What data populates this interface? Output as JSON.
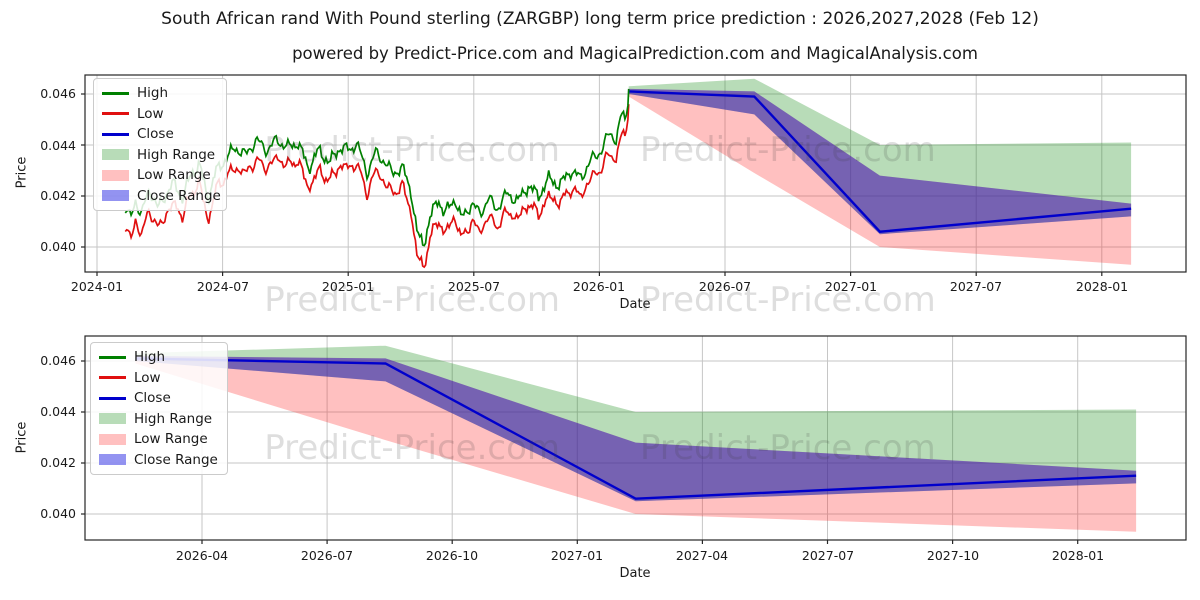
{
  "page": {
    "title": "South African rand With Pound sterling (ZARGBP) long term price prediction : 2026,2027,2028 (Feb 12)",
    "subtitle": "powered by Predict-Price.com and MagicalPrediction.com and MagicalAnalysis.com",
    "watermark_text": "Predict-Price.com"
  },
  "colors": {
    "high_line": "#008000",
    "low_line": "#e01010",
    "close_line": "#0000cc",
    "high_range_fill": "rgba(0,128,0,0.28)",
    "low_range_fill": "rgba(255,30,30,0.28)",
    "close_range_fill": "rgba(15,15,225,0.45)",
    "grid": "#c6c6c6"
  },
  "chart_data": [
    {
      "type": "line",
      "title": "",
      "xlabel": "Date",
      "ylabel": "Price",
      "x_unit": "months since 2024-01",
      "xrange_dates": [
        "2024-01",
        "2028-02"
      ],
      "ylim": [
        0.0388,
        0.0468
      ],
      "grid": true,
      "legend_position": "upper left",
      "legend": [
        "High",
        "Low",
        "Close",
        "High Range",
        "Low Range",
        "Close Range"
      ],
      "xticks": [
        {
          "m": 0,
          "label": "2024-01"
        },
        {
          "m": 6,
          "label": "2024-07"
        },
        {
          "m": 12,
          "label": "2025-01"
        },
        {
          "m": 18,
          "label": "2025-07"
        },
        {
          "m": 24,
          "label": "2026-01"
        },
        {
          "m": 30,
          "label": "2026-07"
        },
        {
          "m": 36,
          "label": "2027-01"
        },
        {
          "m": 42,
          "label": "2027-07"
        },
        {
          "m": 48,
          "label": "2028-01"
        }
      ],
      "yticks": [
        {
          "v": 0.046,
          "label": "0.046"
        },
        {
          "v": 0.044,
          "label": "0.044"
        },
        {
          "v": 0.042,
          "label": "0.042"
        },
        {
          "v": 0.04,
          "label": "0.040"
        }
      ],
      "history": {
        "series": [
          "High",
          "Low"
        ],
        "anchors_month_high_low": [
          [
            1.35,
            0.0415,
            0.0407
          ],
          [
            1.6,
            0.0411,
            0.0403
          ],
          [
            1.85,
            0.0419,
            0.0411
          ],
          [
            2.1,
            0.0412,
            0.0404
          ],
          [
            2.5,
            0.0423,
            0.0415
          ],
          [
            2.9,
            0.0415,
            0.0407
          ],
          [
            3.3,
            0.0421,
            0.0413
          ],
          [
            3.7,
            0.0425,
            0.0417
          ],
          [
            4.1,
            0.0419,
            0.0412
          ],
          [
            4.5,
            0.0429,
            0.0421
          ],
          [
            4.9,
            0.0432,
            0.0425
          ],
          [
            5.3,
            0.0419,
            0.041
          ],
          [
            5.7,
            0.043,
            0.0423
          ],
          [
            6.1,
            0.0434,
            0.0427
          ],
          [
            6.6,
            0.0439,
            0.0431
          ],
          [
            7.1,
            0.0436,
            0.0429
          ],
          [
            7.6,
            0.0442,
            0.0434
          ],
          [
            8.1,
            0.0438,
            0.0431
          ],
          [
            8.6,
            0.0442,
            0.0435
          ],
          [
            9.1,
            0.0439,
            0.0432
          ],
          [
            9.6,
            0.0441,
            0.0434
          ],
          [
            10.1,
            0.0431,
            0.0423
          ],
          [
            10.6,
            0.0438,
            0.043
          ],
          [
            11.1,
            0.0433,
            0.0426
          ],
          [
            11.6,
            0.0439,
            0.0432
          ],
          [
            12.1,
            0.0438,
            0.0431
          ],
          [
            12.4,
            0.0441,
            0.0433
          ],
          [
            12.9,
            0.0429,
            0.0421
          ],
          [
            13.3,
            0.0437,
            0.043
          ],
          [
            13.7,
            0.0434,
            0.0426
          ],
          [
            14.1,
            0.0429,
            0.0421
          ],
          [
            14.6,
            0.0431,
            0.0424
          ],
          [
            15.0,
            0.0422,
            0.0414
          ],
          [
            15.3,
            0.0405,
            0.0396
          ],
          [
            15.6,
            0.0401,
            0.0392
          ],
          [
            15.9,
            0.0411,
            0.0403
          ],
          [
            16.3,
            0.0419,
            0.0411
          ],
          [
            16.6,
            0.0413,
            0.0405
          ],
          [
            17.1,
            0.0419,
            0.0412
          ],
          [
            17.4,
            0.0411,
            0.0403
          ],
          [
            17.9,
            0.0417,
            0.041
          ],
          [
            18.3,
            0.0413,
            0.0406
          ],
          [
            18.7,
            0.0419,
            0.0412
          ],
          [
            19.1,
            0.0415,
            0.0408
          ],
          [
            19.6,
            0.0421,
            0.0414
          ],
          [
            20.1,
            0.0418,
            0.0411
          ],
          [
            20.6,
            0.0424,
            0.0417
          ],
          [
            21.1,
            0.042,
            0.0413
          ],
          [
            21.6,
            0.0427,
            0.042
          ],
          [
            22.1,
            0.0424,
            0.0417
          ],
          [
            22.6,
            0.043,
            0.0423
          ],
          [
            23.1,
            0.0427,
            0.042
          ],
          [
            23.6,
            0.0434,
            0.0427
          ],
          [
            24.1,
            0.0438,
            0.0431
          ],
          [
            24.5,
            0.0445,
            0.0437
          ],
          [
            24.8,
            0.0442,
            0.0434
          ],
          [
            25.1,
            0.0453,
            0.0446
          ],
          [
            25.25,
            0.0449,
            0.0442
          ],
          [
            25.4,
            0.0462,
            0.0456
          ]
        ]
      },
      "prediction": {
        "dates": [
          "2026-02",
          "2026-08",
          "2027-02",
          "2028-02"
        ],
        "x": [
          25.4,
          31.4,
          37.4,
          49.4
        ],
        "close": [
          0.0461,
          0.0459,
          0.0406,
          0.0415
        ],
        "close_upper": [
          0.0462,
          0.0461,
          0.0428,
          0.0417
        ],
        "close_lower": [
          0.046,
          0.0452,
          0.0405,
          0.0412
        ],
        "high_upper": [
          0.0463,
          0.0466,
          0.044,
          0.0441
        ],
        "low_lower": [
          0.0459,
          0.0429,
          0.04,
          0.0393
        ]
      }
    },
    {
      "type": "line",
      "title": "",
      "xlabel": "Date",
      "ylabel": "Price",
      "x_unit": "months since 2024-01",
      "xrange_dates": [
        "2026-02",
        "2028-02"
      ],
      "ylim": [
        0.0388,
        0.0468
      ],
      "grid": true,
      "legend_position": "upper left",
      "legend": [
        "High",
        "Low",
        "Close",
        "High Range",
        "Low Range",
        "Close Range"
      ],
      "xticks": [
        {
          "m": 27,
          "label": "2026-04"
        },
        {
          "m": 30,
          "label": "2026-07"
        },
        {
          "m": 33,
          "label": "2026-10"
        },
        {
          "m": 36,
          "label": "2027-01"
        },
        {
          "m": 39,
          "label": "2027-04"
        },
        {
          "m": 42,
          "label": "2027-07"
        },
        {
          "m": 45,
          "label": "2027-10"
        },
        {
          "m": 48,
          "label": "2028-01"
        }
      ],
      "yticks": [
        {
          "v": 0.046,
          "label": "0.046"
        },
        {
          "v": 0.044,
          "label": "0.044"
        },
        {
          "v": 0.042,
          "label": "0.042"
        },
        {
          "v": 0.04,
          "label": "0.040"
        }
      ],
      "prediction": {
        "dates": [
          "2026-02",
          "2026-08",
          "2027-02",
          "2028-02"
        ],
        "x": [
          25.4,
          31.4,
          37.4,
          49.4
        ],
        "close": [
          0.0461,
          0.0459,
          0.0406,
          0.0415
        ],
        "close_upper": [
          0.0462,
          0.0461,
          0.0428,
          0.0417
        ],
        "close_lower": [
          0.046,
          0.0452,
          0.0405,
          0.0412
        ],
        "high_upper": [
          0.0463,
          0.0466,
          0.044,
          0.0441
        ],
        "low_lower": [
          0.0459,
          0.0429,
          0.04,
          0.0393
        ]
      }
    }
  ]
}
